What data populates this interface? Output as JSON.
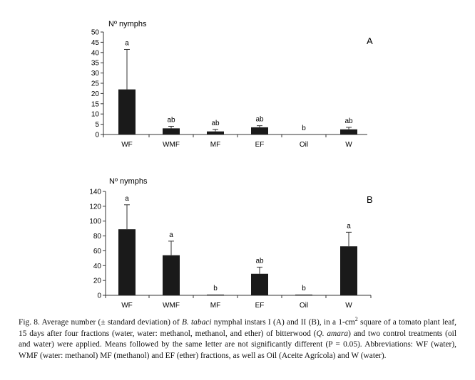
{
  "chart_data": [
    {
      "type": "bar",
      "panel_label": "A",
      "ylabel": "Nº nymphs",
      "ylim": [
        0,
        50
      ],
      "yticks": [
        0,
        5,
        10,
        15,
        20,
        25,
        30,
        35,
        40,
        45,
        50
      ],
      "categories": [
        "WF",
        "WMF",
        "MF",
        "EF",
        "Oil",
        "W"
      ],
      "values": [
        22,
        3,
        1.5,
        3.5,
        0,
        2.5
      ],
      "errors": [
        19.5,
        1,
        1,
        0.8,
        0,
        1
      ],
      "letters": [
        "a",
        "ab",
        "ab",
        "ab",
        "b",
        "ab"
      ],
      "bar_color": "#1a1a1a"
    },
    {
      "type": "bar",
      "panel_label": "B",
      "ylabel": "Nº nymphs",
      "ylim": [
        0,
        140
      ],
      "yticks": [
        0,
        20,
        40,
        60,
        80,
        100,
        120,
        140
      ],
      "categories": [
        "WF",
        "WMF",
        "MF",
        "EF",
        "Oil",
        "W"
      ],
      "values": [
        89,
        54,
        1,
        29,
        1,
        66
      ],
      "errors": [
        33,
        19,
        0,
        9,
        0,
        19
      ],
      "letters": [
        "a",
        "a",
        "b",
        "ab",
        "b",
        "a"
      ],
      "bar_color": "#1a1a1a"
    }
  ],
  "caption": {
    "p1": "Fig. 8. Average number (± standard deviation) of ",
    "i1": "B. tabaci",
    "p2": " nymphal instars I (A) and II (B), in a 1-cm",
    "sup": "2",
    "p3": " square of a tomato plant leaf, 15 days after four fractions (water, water: methanol, methanol, and ether) of bitterwood (",
    "i2": "Q. amara",
    "p4": ") and two control treatments (oil and water) were applied. Means followed by the same letter are not significantly different (P = 0.05). Abbreviations: WF (water), WMF (water: methanol) MF (methanol) and EF (ether) fractions, as well as Oil (Aceite Agrícola) and W (water)."
  }
}
